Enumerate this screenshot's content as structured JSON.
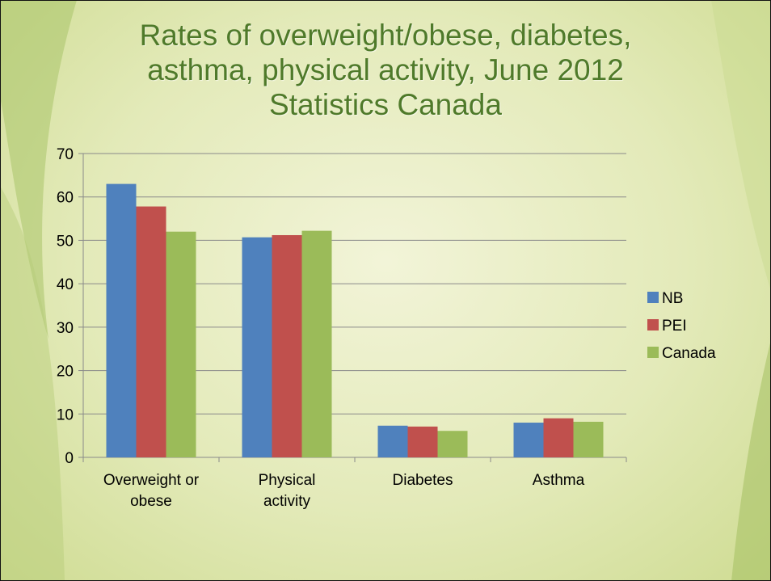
{
  "title_lines": [
    "Rates of overweight/obese, diabetes,",
    "asthma, physical activity, June 2012",
    "Statistics Canada"
  ],
  "colors": {
    "title": "#4f7a2a",
    "background": "#e8edc6"
  },
  "chart_data": {
    "type": "bar",
    "title": "Rates of overweight/obese, diabetes, asthma, physical activity, June 2012 Statistics Canada",
    "xlabel": "",
    "ylabel": "",
    "ylim": [
      0,
      70
    ],
    "yticks": [
      "0",
      "10",
      "20",
      "30",
      "40",
      "50",
      "60",
      "70"
    ],
    "grid": true,
    "legend": "right",
    "categories": [
      [
        "Overweight or",
        "obese"
      ],
      [
        "Physical",
        "activity"
      ],
      [
        "Diabetes"
      ],
      [
        "Asthma"
      ]
    ],
    "series": [
      {
        "name": "NB",
        "color": "#4f81bd",
        "values": [
          63,
          50.7,
          7.3,
          8
        ]
      },
      {
        "name": "PEI",
        "color": "#c0504d",
        "values": [
          57.8,
          51.2,
          7.1,
          9
        ]
      },
      {
        "name": "Canada",
        "color": "#9bbb59",
        "values": [
          52,
          52.2,
          6.1,
          8.2
        ]
      }
    ]
  }
}
